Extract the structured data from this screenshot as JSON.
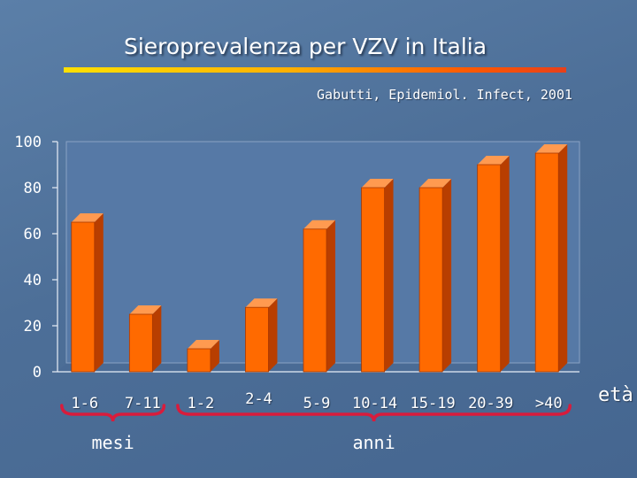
{
  "title": "Sieroprevalenza per VZV in Italia",
  "source": "Gabutti, Epidemiol. Infect, 2001",
  "axis_label_right": "età",
  "groups": [
    {
      "label": "mesi",
      "first": 0,
      "last": 1
    },
    {
      "label": "anni",
      "first": 2,
      "last": 8
    }
  ],
  "colors": {
    "bar_front": "#ff6a00",
    "bar_top": "#ff9a50",
    "bar_side": "#b83e00",
    "brace": "#d81c3c",
    "plot_bg": "#5679a6"
  },
  "chart_data": {
    "type": "bar",
    "categories": [
      "1-6",
      "7-11",
      "1-2",
      "2-4",
      "5-9",
      "10-14",
      "15-19",
      "20-39",
      ">40"
    ],
    "values": [
      65,
      25,
      10,
      28,
      62,
      80,
      80,
      90,
      95
    ],
    "ylim": [
      0,
      100
    ],
    "yticks": [
      0,
      20,
      40,
      60,
      80,
      100
    ],
    "grid": false,
    "legend": "none"
  }
}
